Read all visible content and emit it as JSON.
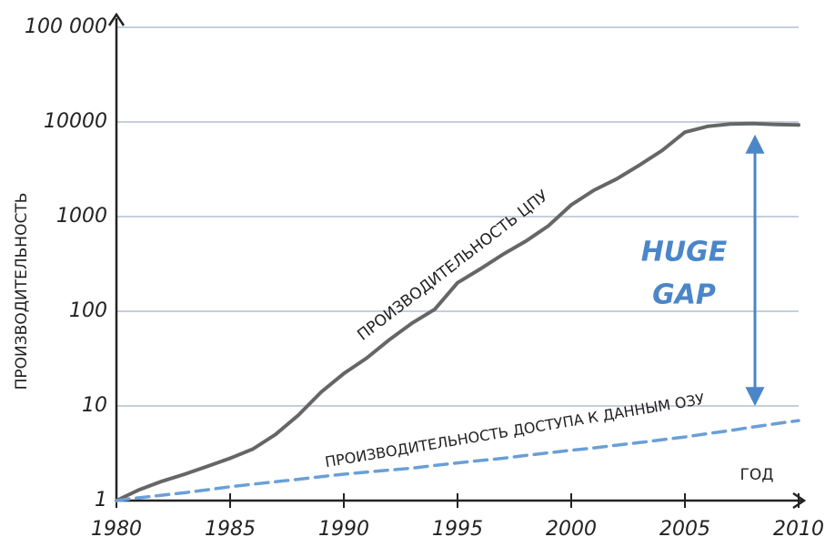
{
  "chart_data": {
    "type": "line",
    "x_label": "ГОД",
    "y_label": "ПРОИЗВОДИТЕЛЬНОСТЬ",
    "annotations": [
      "HUGE",
      "GAP"
    ],
    "x": [
      1980,
      1981,
      1982,
      1983,
      1984,
      1985,
      1986,
      1987,
      1988,
      1989,
      1990,
      1991,
      1992,
      1993,
      1994,
      1995,
      1996,
      1997,
      1998,
      1999,
      2000,
      2001,
      2002,
      2003,
      2004,
      2005,
      2006,
      2007,
      2008,
      2009,
      2010
    ],
    "series": [
      {
        "name": "ПРОИЗВОДИТЕЛЬНОСТЬ ЦПУ",
        "color": "#666666",
        "values": [
          1,
          1.3,
          1.6,
          1.9,
          2.3,
          2.8,
          3.5,
          5,
          8,
          14,
          22,
          32,
          50,
          75,
          105,
          200,
          280,
          400,
          550,
          800,
          1330,
          1900,
          2500,
          3500,
          5000,
          7800,
          9000,
          9500,
          9600,
          9400,
          9300
        ]
      },
      {
        "name": "ПРОИЗВОДИТЕЛЬНОСТЬ ДОСТУПА К ДАННЫМ ОЗУ",
        "color": "#6a9fd8",
        "values": [
          1,
          1.07,
          1.14,
          1.21,
          1.3,
          1.4,
          1.49,
          1.58,
          1.68,
          1.79,
          1.9,
          2,
          2.1,
          2.2,
          2.35,
          2.5,
          2.65,
          2.8,
          3,
          3.2,
          3.4,
          3.6,
          3.85,
          4.1,
          4.4,
          4.7,
          5.1,
          5.5,
          6,
          6.5,
          7
        ]
      }
    ],
    "xlim": [
      1980,
      2010
    ],
    "xticks": [
      1980,
      1985,
      1990,
      1995,
      2000,
      2005,
      2010
    ],
    "ylim": [
      1,
      100000
    ],
    "yticks": [
      1,
      10,
      100,
      1000,
      10000,
      {
        "value": 100000,
        "label": "100 000"
      }
    ],
    "log_scale": true,
    "grid": true
  }
}
